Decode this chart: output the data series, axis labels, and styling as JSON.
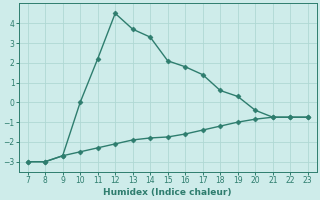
{
  "xlabel": "Humidex (Indice chaleur)",
  "line1_x": [
    7,
    8,
    9,
    10,
    11,
    12,
    13,
    14,
    15,
    16,
    17,
    18,
    19,
    20,
    21,
    22,
    23
  ],
  "line1_y": [
    -3.0,
    -3.0,
    -2.7,
    0.0,
    2.2,
    4.5,
    3.7,
    3.3,
    2.1,
    1.8,
    1.4,
    0.6,
    0.3,
    -0.4,
    -0.75,
    -0.75,
    -0.75
  ],
  "line2_x": [
    7,
    8,
    9,
    10,
    11,
    12,
    13,
    14,
    15,
    16,
    17,
    18,
    19,
    20,
    21,
    22,
    23
  ],
  "line2_y": [
    -3.0,
    -3.0,
    -2.7,
    -2.5,
    -2.3,
    -2.1,
    -1.9,
    -1.8,
    -1.75,
    -1.6,
    -1.4,
    -1.2,
    -1.0,
    -0.85,
    -0.75,
    -0.75,
    -0.75
  ],
  "line_color": "#2e7d6e",
  "bg_color": "#ceecea",
  "grid_color": "#b0d8d4",
  "xlim": [
    6.5,
    23.5
  ],
  "ylim": [
    -3.5,
    5.0
  ],
  "yticks": [
    -3,
    -2,
    -1,
    0,
    1,
    2,
    3,
    4
  ],
  "xticks": [
    7,
    8,
    9,
    10,
    11,
    12,
    13,
    14,
    15,
    16,
    17,
    18,
    19,
    20,
    21,
    22,
    23
  ],
  "marker": "D",
  "marker_size": 2.5,
  "linewidth": 1.0,
  "tick_fontsize": 5.5,
  "xlabel_fontsize": 6.5
}
